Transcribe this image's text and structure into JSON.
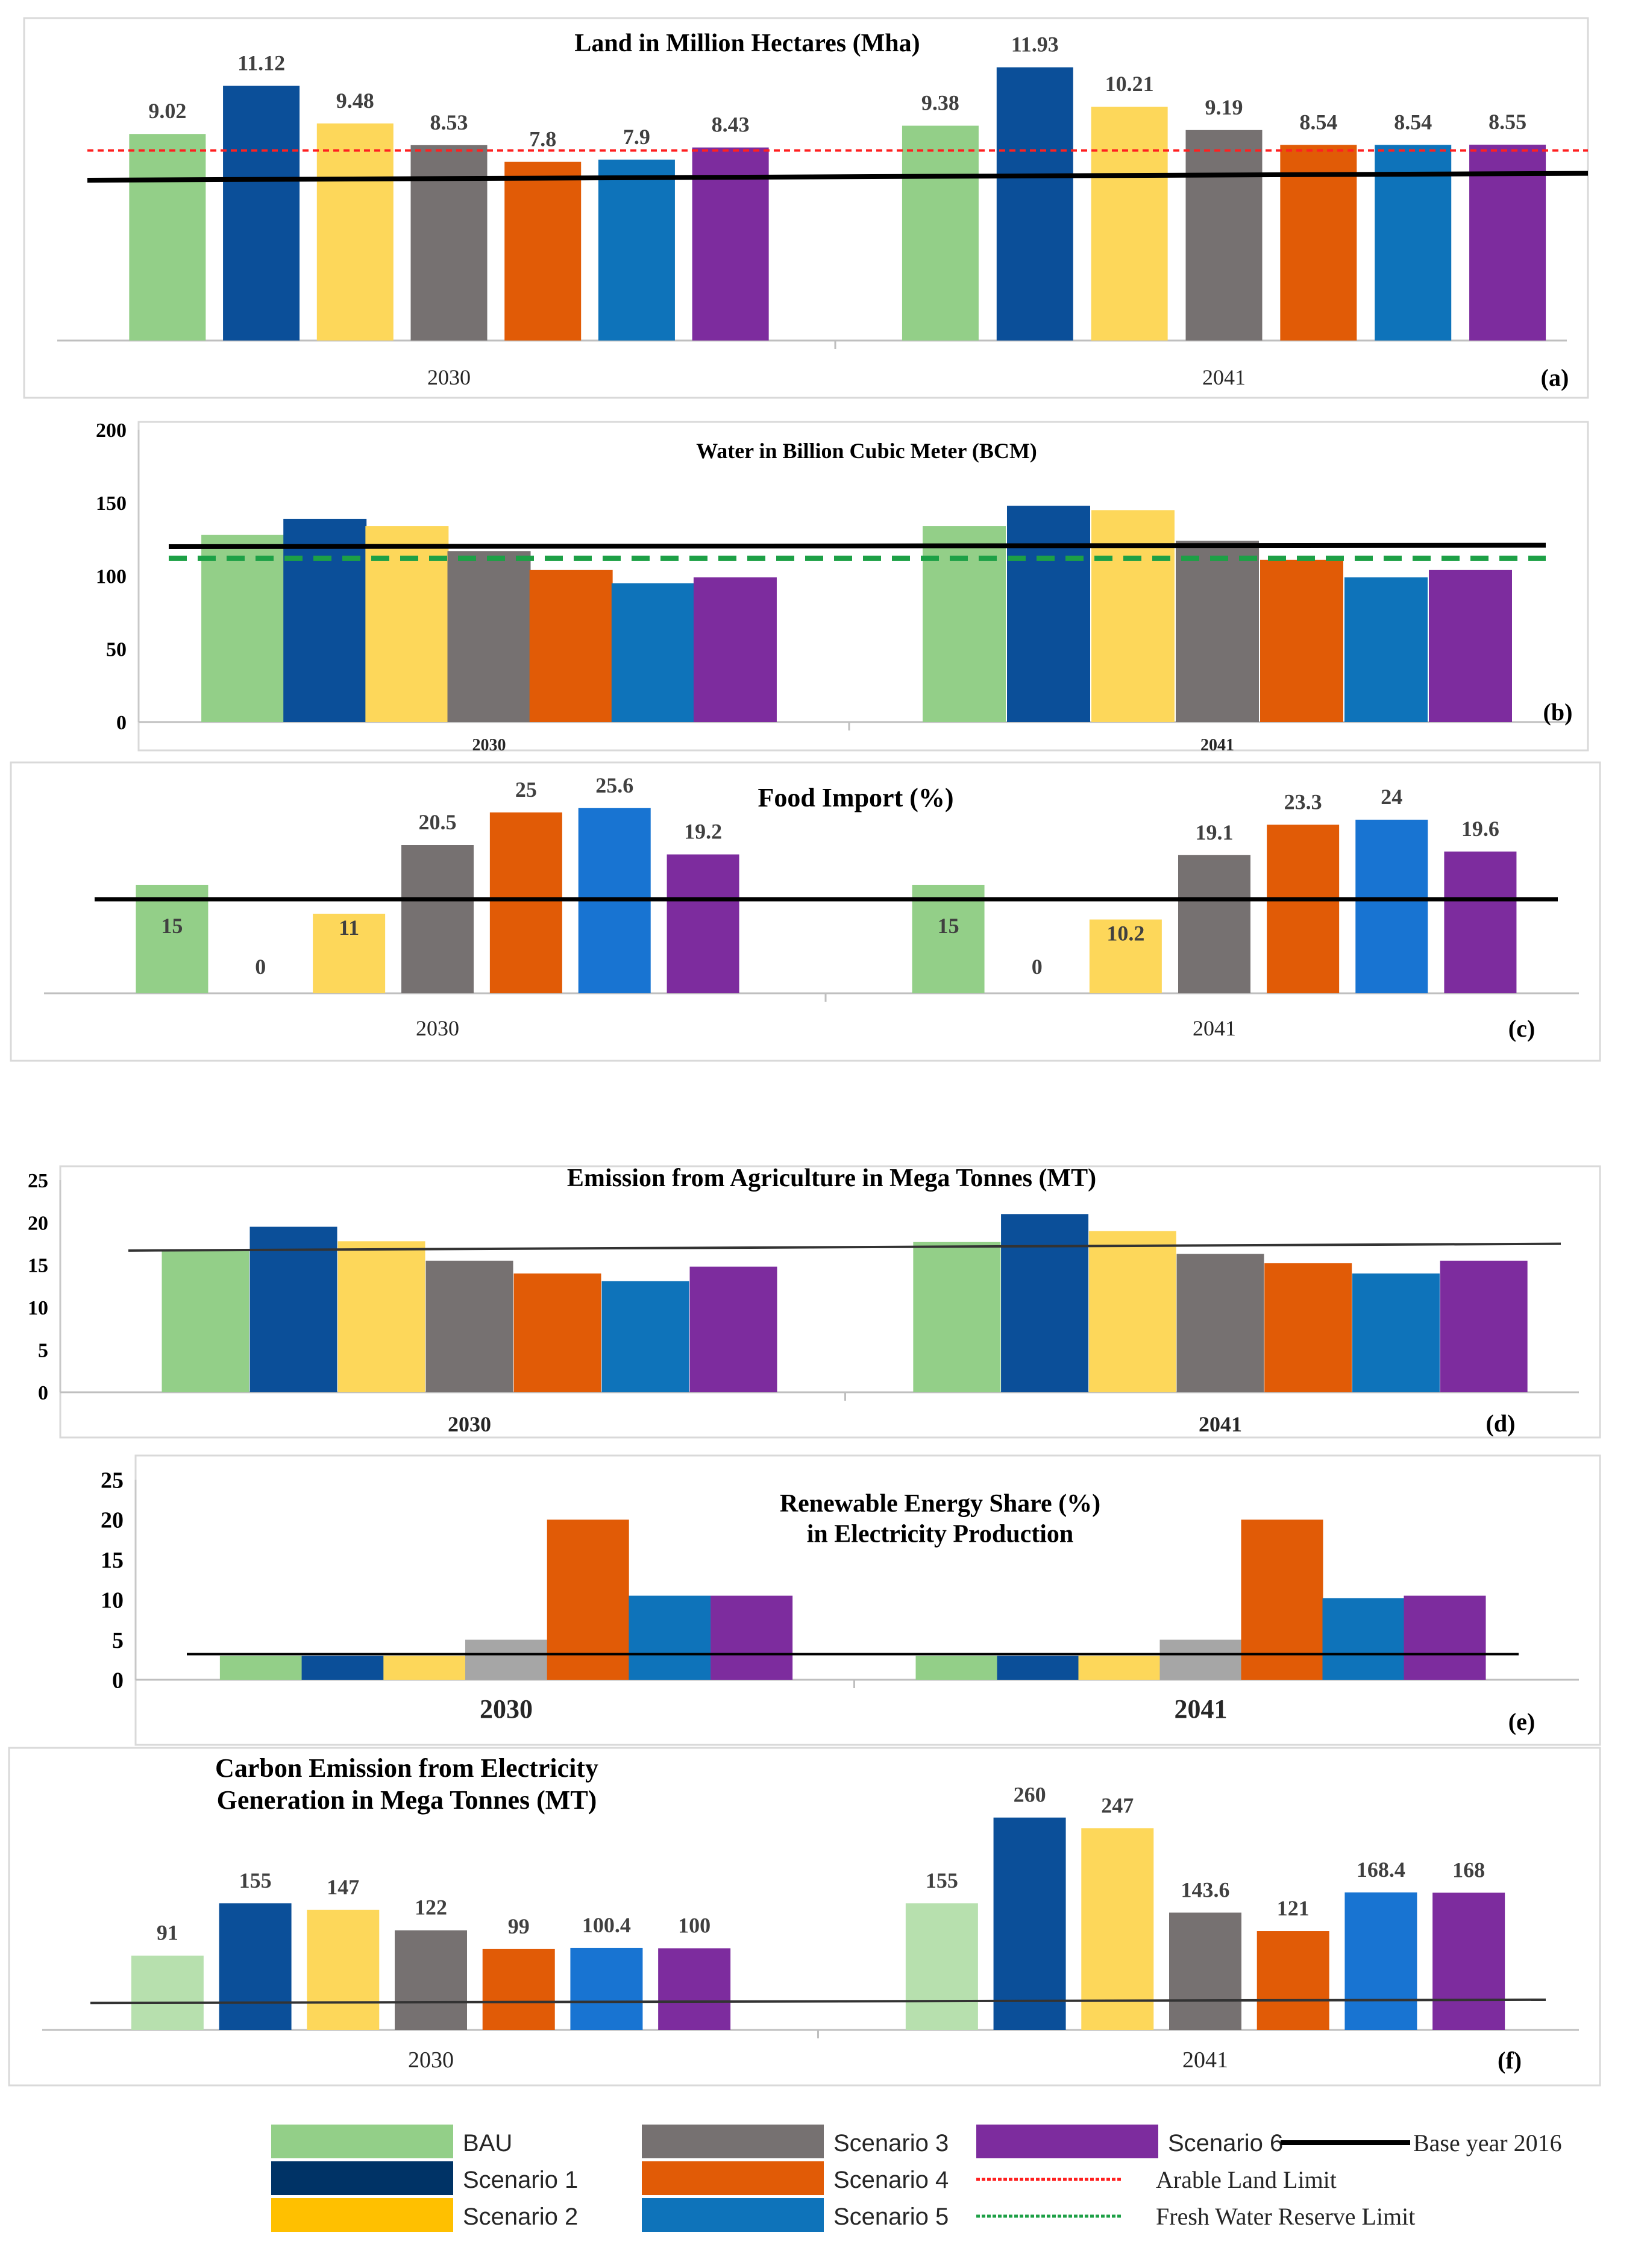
{
  "colors": {
    "BAU": "#93CF88",
    "Scenario 1": "#0B4F99",
    "Scenario 2": "#FDD75A",
    "Scenario 3": "#767171",
    "Scenario 4": "#E15B06",
    "Scenario 5": "#0E73BA",
    "Scenario 6": "#7D2C9E",
    "base": "#000000",
    "arable": "#FF2020",
    "water": "#1DA046"
  },
  "chart_data": [
    {
      "id": "a",
      "type": "bar",
      "title": "Land in Million Hectares (Mha)",
      "panel_label": "(a)",
      "categories": [
        "2030",
        "2041"
      ],
      "series": [
        {
          "name": "BAU",
          "values": [
            9.02,
            9.38
          ]
        },
        {
          "name": "Scenario 1",
          "values": [
            11.12,
            11.93
          ]
        },
        {
          "name": "Scenario 2",
          "values": [
            9.48,
            10.21
          ]
        },
        {
          "name": "Scenario 3",
          "values": [
            8.53,
            9.19
          ]
        },
        {
          "name": "Scenario 4",
          "values": [
            7.8,
            8.54
          ]
        },
        {
          "name": "Scenario 5",
          "values": [
            7.9,
            8.54
          ]
        },
        {
          "name": "Scenario 6",
          "values": [
            8.43,
            8.55
          ]
        }
      ],
      "data_labels": [
        [
          "9.02",
          "11.12",
          "9.48",
          "8.53",
          "7.8",
          "7.9",
          "8.43"
        ],
        [
          "9.38",
          "11.93",
          "10.21",
          "9.19",
          "8.54",
          "8.54",
          "8.55"
        ]
      ],
      "reference_lines": [
        {
          "name": "Base year 2016",
          "values": [
            7.0,
            7.3
          ],
          "style": "solid"
        },
        {
          "name": "Arable Land Limit",
          "values": [
            8.3,
            8.3
          ],
          "style": "dotted"
        }
      ],
      "ylim": [
        0,
        12.5
      ],
      "show_y_axis": false,
      "y_ticks": []
    },
    {
      "id": "b",
      "type": "bar",
      "title": "Water in Billion Cubic Meter (BCM)",
      "panel_label": "(b)",
      "categories": [
        "2030",
        "2041"
      ],
      "series": [
        {
          "name": "BAU",
          "values": [
            128,
            134
          ]
        },
        {
          "name": "Scenario 1",
          "values": [
            139,
            148
          ]
        },
        {
          "name": "Scenario 2",
          "values": [
            134,
            145
          ]
        },
        {
          "name": "Scenario 3",
          "values": [
            117,
            124
          ]
        },
        {
          "name": "Scenario 4",
          "values": [
            104,
            111
          ]
        },
        {
          "name": "Scenario 5",
          "values": [
            95,
            99
          ]
        },
        {
          "name": "Scenario 6",
          "values": [
            99,
            104
          ]
        }
      ],
      "reference_lines": [
        {
          "name": "Base year 2016",
          "values": [
            120,
            121
          ],
          "style": "solid"
        },
        {
          "name": "Fresh Water Reserve Limit",
          "values": [
            112,
            112
          ],
          "style": "dashed"
        }
      ],
      "ylim": [
        0,
        200
      ],
      "show_y_axis": true,
      "y_ticks": [
        0,
        50,
        100,
        150,
        200
      ]
    },
    {
      "id": "c",
      "type": "bar",
      "title": "Food Import (%)",
      "panel_label": "(c)",
      "categories": [
        "2030",
        "2041"
      ],
      "series": [
        {
          "name": "BAU",
          "values": [
            15,
            15
          ]
        },
        {
          "name": "Scenario 1",
          "values": [
            0,
            0
          ]
        },
        {
          "name": "Scenario 2",
          "values": [
            11,
            10.2
          ]
        },
        {
          "name": "Scenario 3",
          "values": [
            20.5,
            19.1
          ]
        },
        {
          "name": "Scenario 4",
          "values": [
            25,
            23.3
          ]
        },
        {
          "name": "Scenario 5",
          "values": [
            25.6,
            24
          ]
        },
        {
          "name": "Scenario 6",
          "values": [
            19.2,
            19.6
          ]
        }
      ],
      "data_labels": [
        [
          "15",
          "0",
          "11",
          "20.5",
          "25",
          "25.6",
          "19.2"
        ],
        [
          "15",
          "0",
          "10.2",
          "19.1",
          "23.3",
          "24",
          "19.6"
        ]
      ],
      "reference_lines": [
        {
          "name": "Base year 2016",
          "values": [
            13,
            13
          ],
          "style": "solid"
        }
      ],
      "ylim": [
        0,
        29
      ],
      "show_y_axis": false,
      "y_ticks": []
    },
    {
      "id": "d",
      "type": "bar",
      "title": "Emission from Agriculture  in Mega Tonnes (MT)",
      "panel_label": "(d)",
      "categories": [
        "2030",
        "2041"
      ],
      "series": [
        {
          "name": "BAU",
          "values": [
            16.8,
            17.7
          ]
        },
        {
          "name": "Scenario 1",
          "values": [
            19.5,
            21
          ]
        },
        {
          "name": "Scenario 2",
          "values": [
            17.8,
            19
          ]
        },
        {
          "name": "Scenario 3",
          "values": [
            15.5,
            16.3
          ]
        },
        {
          "name": "Scenario 4",
          "values": [
            14,
            15.2
          ]
        },
        {
          "name": "Scenario 5",
          "values": [
            13.1,
            14
          ]
        },
        {
          "name": "Scenario 6",
          "values": [
            14.8,
            15.5
          ]
        }
      ],
      "reference_lines": [
        {
          "name": "Base year 2016",
          "values": [
            16.7,
            17.5
          ],
          "style": "solid"
        }
      ],
      "ylim": [
        0,
        25
      ],
      "show_y_axis": true,
      "y_ticks": [
        0,
        5,
        10,
        15,
        20,
        25
      ]
    },
    {
      "id": "e",
      "type": "bar",
      "title": "Renewable Energy Share (%)",
      "subtitle": "in Electricity Production",
      "panel_label": "(e)",
      "categories": [
        "2030",
        "2041"
      ],
      "series": [
        {
          "name": "BAU",
          "values": [
            3,
            3
          ]
        },
        {
          "name": "Scenario 1",
          "values": [
            3,
            3
          ]
        },
        {
          "name": "Scenario 2",
          "values": [
            3,
            3
          ]
        },
        {
          "name": "Scenario 3",
          "values": [
            5,
            5
          ]
        },
        {
          "name": "Scenario 4",
          "values": [
            20,
            20
          ]
        },
        {
          "name": "Scenario 5",
          "values": [
            10.5,
            10.2
          ]
        },
        {
          "name": "Scenario 6",
          "values": [
            10.5,
            10.5
          ]
        }
      ],
      "reference_lines": [
        {
          "name": "Base year 2016",
          "values": [
            3.2,
            3.2
          ],
          "style": "solid"
        }
      ],
      "ylim": [
        0,
        25
      ],
      "show_y_axis": true,
      "y_ticks": [
        0,
        5,
        10,
        15,
        20,
        25
      ]
    },
    {
      "id": "f",
      "type": "bar",
      "title": "Carbon Emission from Electricity",
      "subtitle": "Generation in Mega Tonnes (MT)",
      "panel_label": "(f)",
      "categories": [
        "2030",
        "2041"
      ],
      "series": [
        {
          "name": "BAU",
          "values": [
            91,
            155
          ]
        },
        {
          "name": "Scenario 1",
          "values": [
            155,
            260
          ]
        },
        {
          "name": "Scenario 2",
          "values": [
            147,
            247
          ]
        },
        {
          "name": "Scenario 3",
          "values": [
            122,
            143.6
          ]
        },
        {
          "name": "Scenario 4",
          "values": [
            99,
            121
          ]
        },
        {
          "name": "Scenario 5",
          "values": [
            100.4,
            168.4
          ]
        },
        {
          "name": "Scenario 6",
          "values": [
            100,
            168
          ]
        }
      ],
      "data_labels": [
        [
          "91",
          "155",
          "147",
          "122",
          "99",
          "100.4",
          "100"
        ],
        [
          "155",
          "260",
          "247",
          "143.6",
          "121",
          "168.4",
          "168"
        ]
      ],
      "reference_lines": [
        {
          "name": "Base year 2016",
          "values": [
            33,
            37
          ],
          "style": "solid"
        }
      ],
      "ylim": [
        0,
        290
      ],
      "show_y_axis": false,
      "y_ticks": []
    }
  ],
  "legend": [
    {
      "label": "BAU",
      "kind": "swatch",
      "color": "#93CF88"
    },
    {
      "label": "Scenario 1",
      "kind": "swatch",
      "color": "#003366"
    },
    {
      "label": "Scenario 2",
      "kind": "swatch",
      "color": "#FFC000"
    },
    {
      "label": "Scenario 3",
      "kind": "swatch",
      "color": "#767171"
    },
    {
      "label": "Scenario 4",
      "kind": "swatch",
      "color": "#E15B06"
    },
    {
      "label": "Scenario 5",
      "kind": "swatch",
      "color": "#0E73BA"
    },
    {
      "label": "Scenario 6",
      "kind": "swatch",
      "color": "#7D2C9E"
    },
    {
      "label": "Base year 2016",
      "kind": "line",
      "color": "#000000"
    },
    {
      "label": "Arable Land Limit",
      "kind": "dotted",
      "color": "#FF2020"
    },
    {
      "label": "Fresh Water Reserve Limit",
      "kind": "dashed",
      "color": "#1DA046"
    }
  ]
}
